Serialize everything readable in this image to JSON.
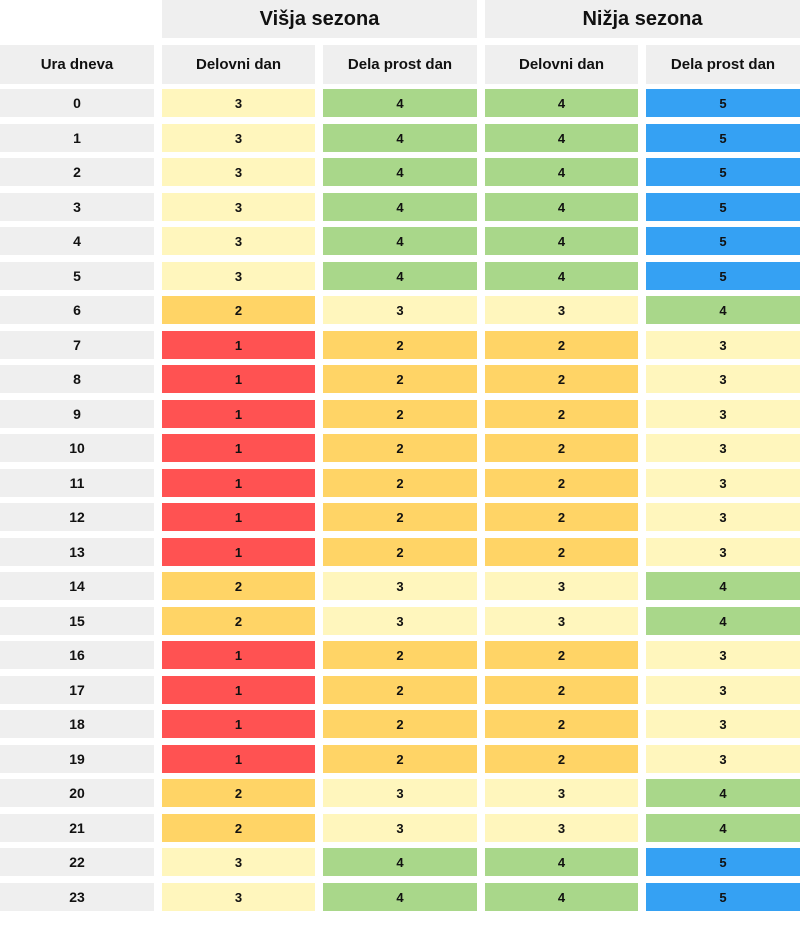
{
  "chart_data": {
    "type": "table",
    "column_groups": [
      {
        "label": "Višja sezona",
        "columns": [
          "Delovni dan",
          "Dela prost dan"
        ]
      },
      {
        "label": "Nižja sezona",
        "columns": [
          "Delovni dan",
          "Dela prost dan"
        ]
      }
    ],
    "row_header_label": "Ura dneva",
    "column_headers": [
      "Delovni dan",
      "Dela prost dan",
      "Delovni dan",
      "Dela prost dan"
    ],
    "rows": [
      {
        "hour": "0",
        "values": [
          3,
          4,
          4,
          5
        ]
      },
      {
        "hour": "1",
        "values": [
          3,
          4,
          4,
          5
        ]
      },
      {
        "hour": "2",
        "values": [
          3,
          4,
          4,
          5
        ]
      },
      {
        "hour": "3",
        "values": [
          3,
          4,
          4,
          5
        ]
      },
      {
        "hour": "4",
        "values": [
          3,
          4,
          4,
          5
        ]
      },
      {
        "hour": "5",
        "values": [
          3,
          4,
          4,
          5
        ]
      },
      {
        "hour": "6",
        "values": [
          2,
          3,
          3,
          4
        ]
      },
      {
        "hour": "7",
        "values": [
          1,
          2,
          2,
          3
        ]
      },
      {
        "hour": "8",
        "values": [
          1,
          2,
          2,
          3
        ]
      },
      {
        "hour": "9",
        "values": [
          1,
          2,
          2,
          3
        ]
      },
      {
        "hour": "10",
        "values": [
          1,
          2,
          2,
          3
        ]
      },
      {
        "hour": "11",
        "values": [
          1,
          2,
          2,
          3
        ]
      },
      {
        "hour": "12",
        "values": [
          1,
          2,
          2,
          3
        ]
      },
      {
        "hour": "13",
        "values": [
          1,
          2,
          2,
          3
        ]
      },
      {
        "hour": "14",
        "values": [
          2,
          3,
          3,
          4
        ]
      },
      {
        "hour": "15",
        "values": [
          2,
          3,
          3,
          4
        ]
      },
      {
        "hour": "16",
        "values": [
          1,
          2,
          2,
          3
        ]
      },
      {
        "hour": "17",
        "values": [
          1,
          2,
          2,
          3
        ]
      },
      {
        "hour": "18",
        "values": [
          1,
          2,
          2,
          3
        ]
      },
      {
        "hour": "19",
        "values": [
          1,
          2,
          2,
          3
        ]
      },
      {
        "hour": "20",
        "values": [
          2,
          3,
          3,
          4
        ]
      },
      {
        "hour": "21",
        "values": [
          2,
          3,
          3,
          4
        ]
      },
      {
        "hour": "22",
        "values": [
          3,
          4,
          4,
          5
        ]
      },
      {
        "hour": "23",
        "values": [
          3,
          4,
          4,
          5
        ]
      }
    ],
    "value_colors": {
      "1": "#ff5252",
      "2": "#ffd466",
      "3": "#fff6bd",
      "4": "#a9d78a",
      "5": "#35a1f3"
    },
    "header_background": "#efefef"
  }
}
